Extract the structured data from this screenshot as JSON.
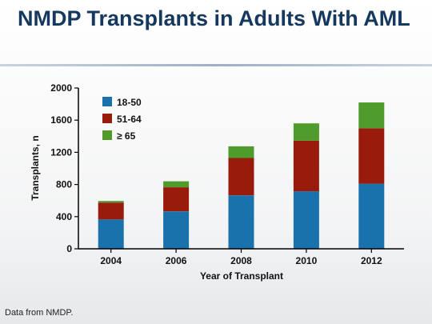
{
  "slide": {
    "title": "NMDP Transplants in Adults With AML",
    "footnote": "Data from NMDP."
  },
  "chart_data": {
    "type": "bar",
    "stacked": true,
    "title": "",
    "xlabel": "Year of Transplant",
    "ylabel": "Transplants, n",
    "categories": [
      "2004",
      "2006",
      "2008",
      "2010",
      "2012"
    ],
    "ylim": [
      0,
      2000
    ],
    "yticks": [
      0,
      400,
      800,
      1200,
      1600,
      2000
    ],
    "grid": false,
    "legend": "top-left",
    "series": [
      {
        "name": "18-50",
        "color": "#1a72ad",
        "values": [
          365,
          465,
          665,
          715,
          810
        ]
      },
      {
        "name": "51-64",
        "color": "#991b0c",
        "values": [
          210,
          300,
          465,
          630,
          690
        ]
      },
      {
        "name": "≥ 65",
        "color": "#4f9b2b",
        "values": [
          20,
          75,
          145,
          215,
          320
        ]
      }
    ]
  }
}
